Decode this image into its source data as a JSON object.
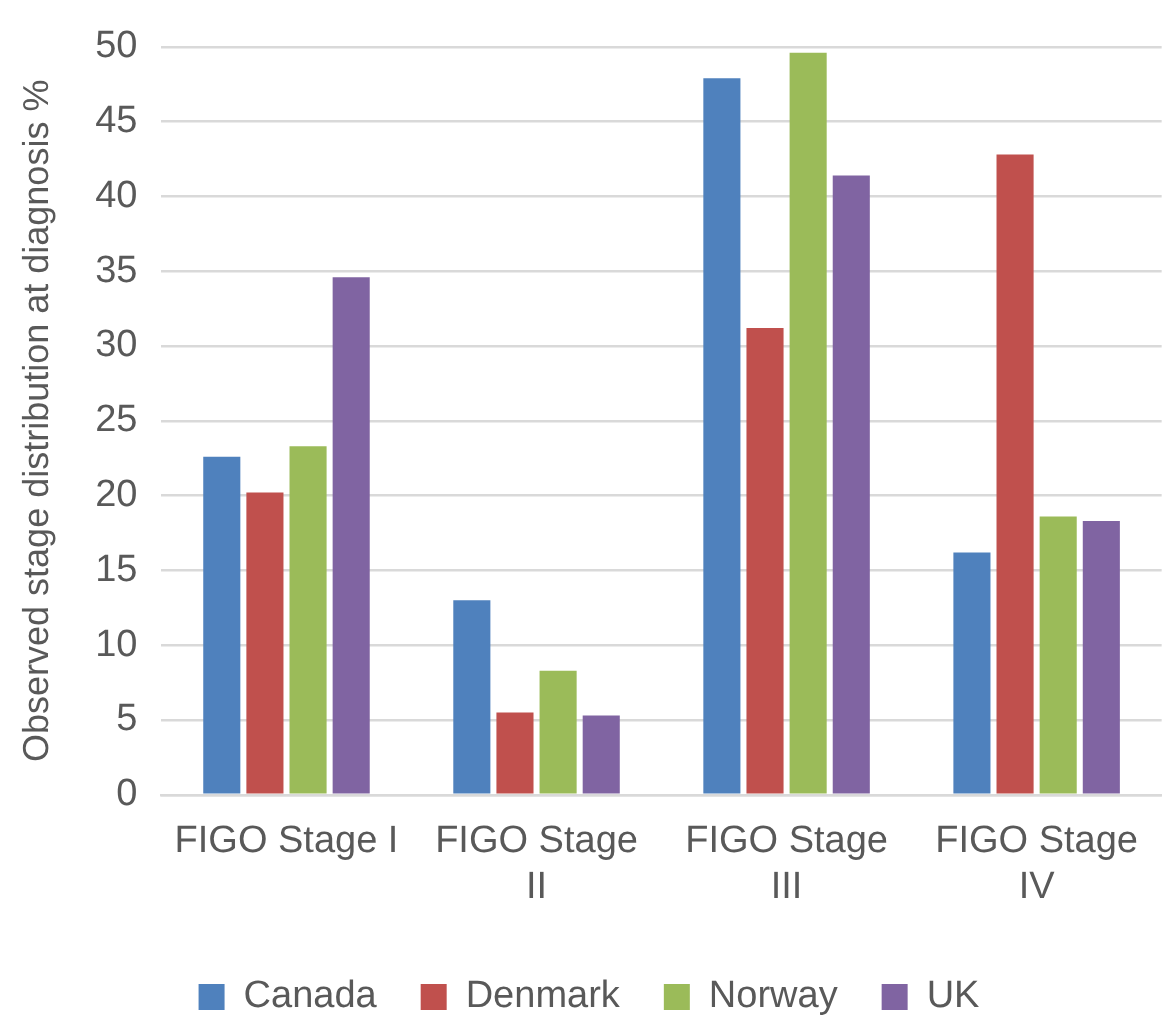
{
  "chart_data": {
    "type": "bar",
    "categories": [
      "FIGO Stage I",
      "FIGO Stage II",
      "FIGO Stage III",
      "FIGO Stage IV"
    ],
    "series": [
      {
        "name": "Canada",
        "color": "#4f81bd",
        "values": [
          22.6,
          13.0,
          47.9,
          16.2
        ]
      },
      {
        "name": "Denmark",
        "color": "#c0504d",
        "values": [
          20.2,
          5.5,
          31.2,
          42.8
        ]
      },
      {
        "name": "Norway",
        "color": "#9bbb59",
        "values": [
          23.3,
          8.3,
          49.6,
          18.6
        ]
      },
      {
        "name": "UK",
        "color": "#8064a2",
        "values": [
          34.6,
          5.3,
          41.4,
          18.3
        ]
      }
    ],
    "ylabel": "Observed stage distribution at diagnosis %",
    "ylim": [
      0,
      50
    ],
    "yticks": [
      0,
      5,
      10,
      15,
      20,
      25,
      30,
      35,
      40,
      45,
      50
    ],
    "grid": "y",
    "legend": "bottom"
  }
}
